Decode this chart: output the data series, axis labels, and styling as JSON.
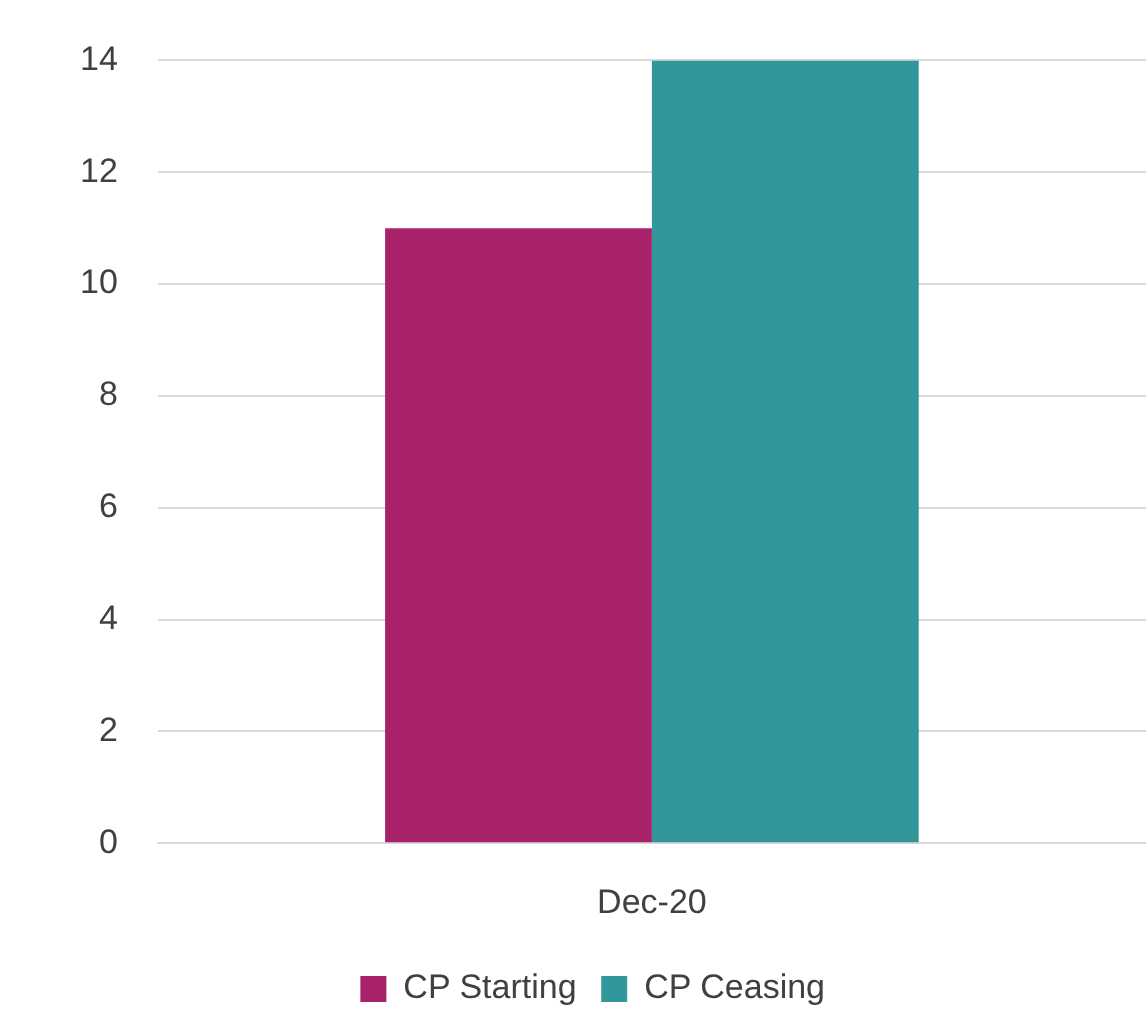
{
  "chart_data": {
    "type": "bar",
    "categories": [
      "Dec-20"
    ],
    "series": [
      {
        "name": "CP Starting",
        "color": "#a8226a",
        "values": [
          11
        ]
      },
      {
        "name": "CP Ceasing",
        "color": "#31979a",
        "values": [
          14
        ]
      }
    ],
    "ylim": [
      0,
      14
    ],
    "yticks": [
      0,
      2,
      4,
      6,
      8,
      10,
      12,
      14
    ],
    "grid": "y",
    "legend": "bottom"
  }
}
